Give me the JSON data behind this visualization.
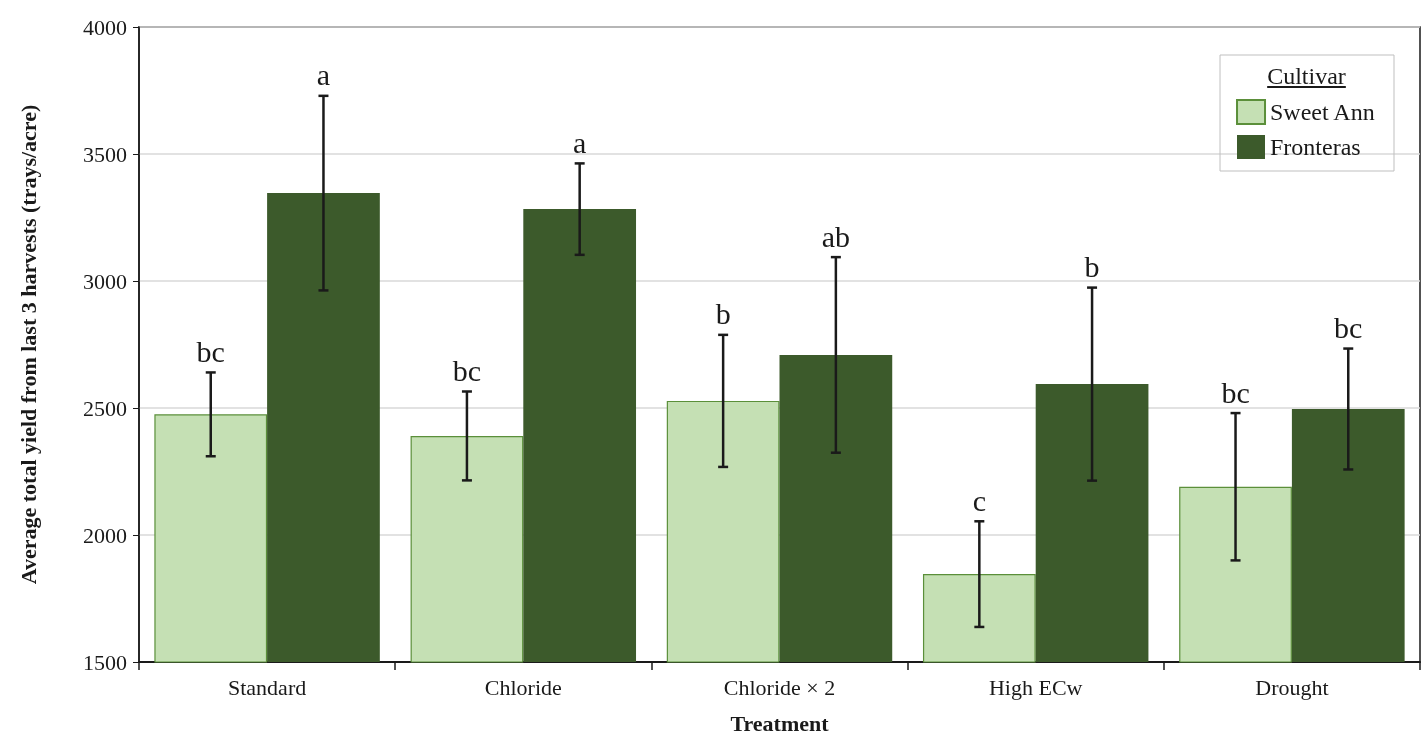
{
  "chart_data": {
    "type": "bar",
    "xlabel": "Treatment",
    "ylabel": "Average total yield from last 3 harvests (trays/acre)",
    "legend_title": "Cultivar",
    "categories": [
      "Standard",
      "Chloride",
      "Chloride × 2",
      "High ECw",
      "Drought"
    ],
    "series": [
      {
        "name": "Sweet Ann",
        "color": "#c5e0b4",
        "values": [
          2475,
          2390,
          2528,
          1846,
          2190
        ],
        "errors": [
          165,
          175,
          260,
          208,
          290
        ]
      },
      {
        "name": "Fronteras",
        "color": "#3c5a2b",
        "values": [
          3346,
          3283,
          2709,
          2594,
          2496
        ],
        "errors": [
          383,
          180,
          385,
          380,
          238
        ]
      }
    ],
    "ylim": [
      1500,
      4000
    ],
    "yticks": [
      1500,
      2000,
      2500,
      3000,
      3500,
      4000
    ],
    "grid": "y",
    "legend": "top right",
    "annotations": [
      "bc",
      "a",
      "bc",
      "a",
      "b",
      "ab",
      "c",
      "b",
      "bc",
      "bc"
    ]
  }
}
